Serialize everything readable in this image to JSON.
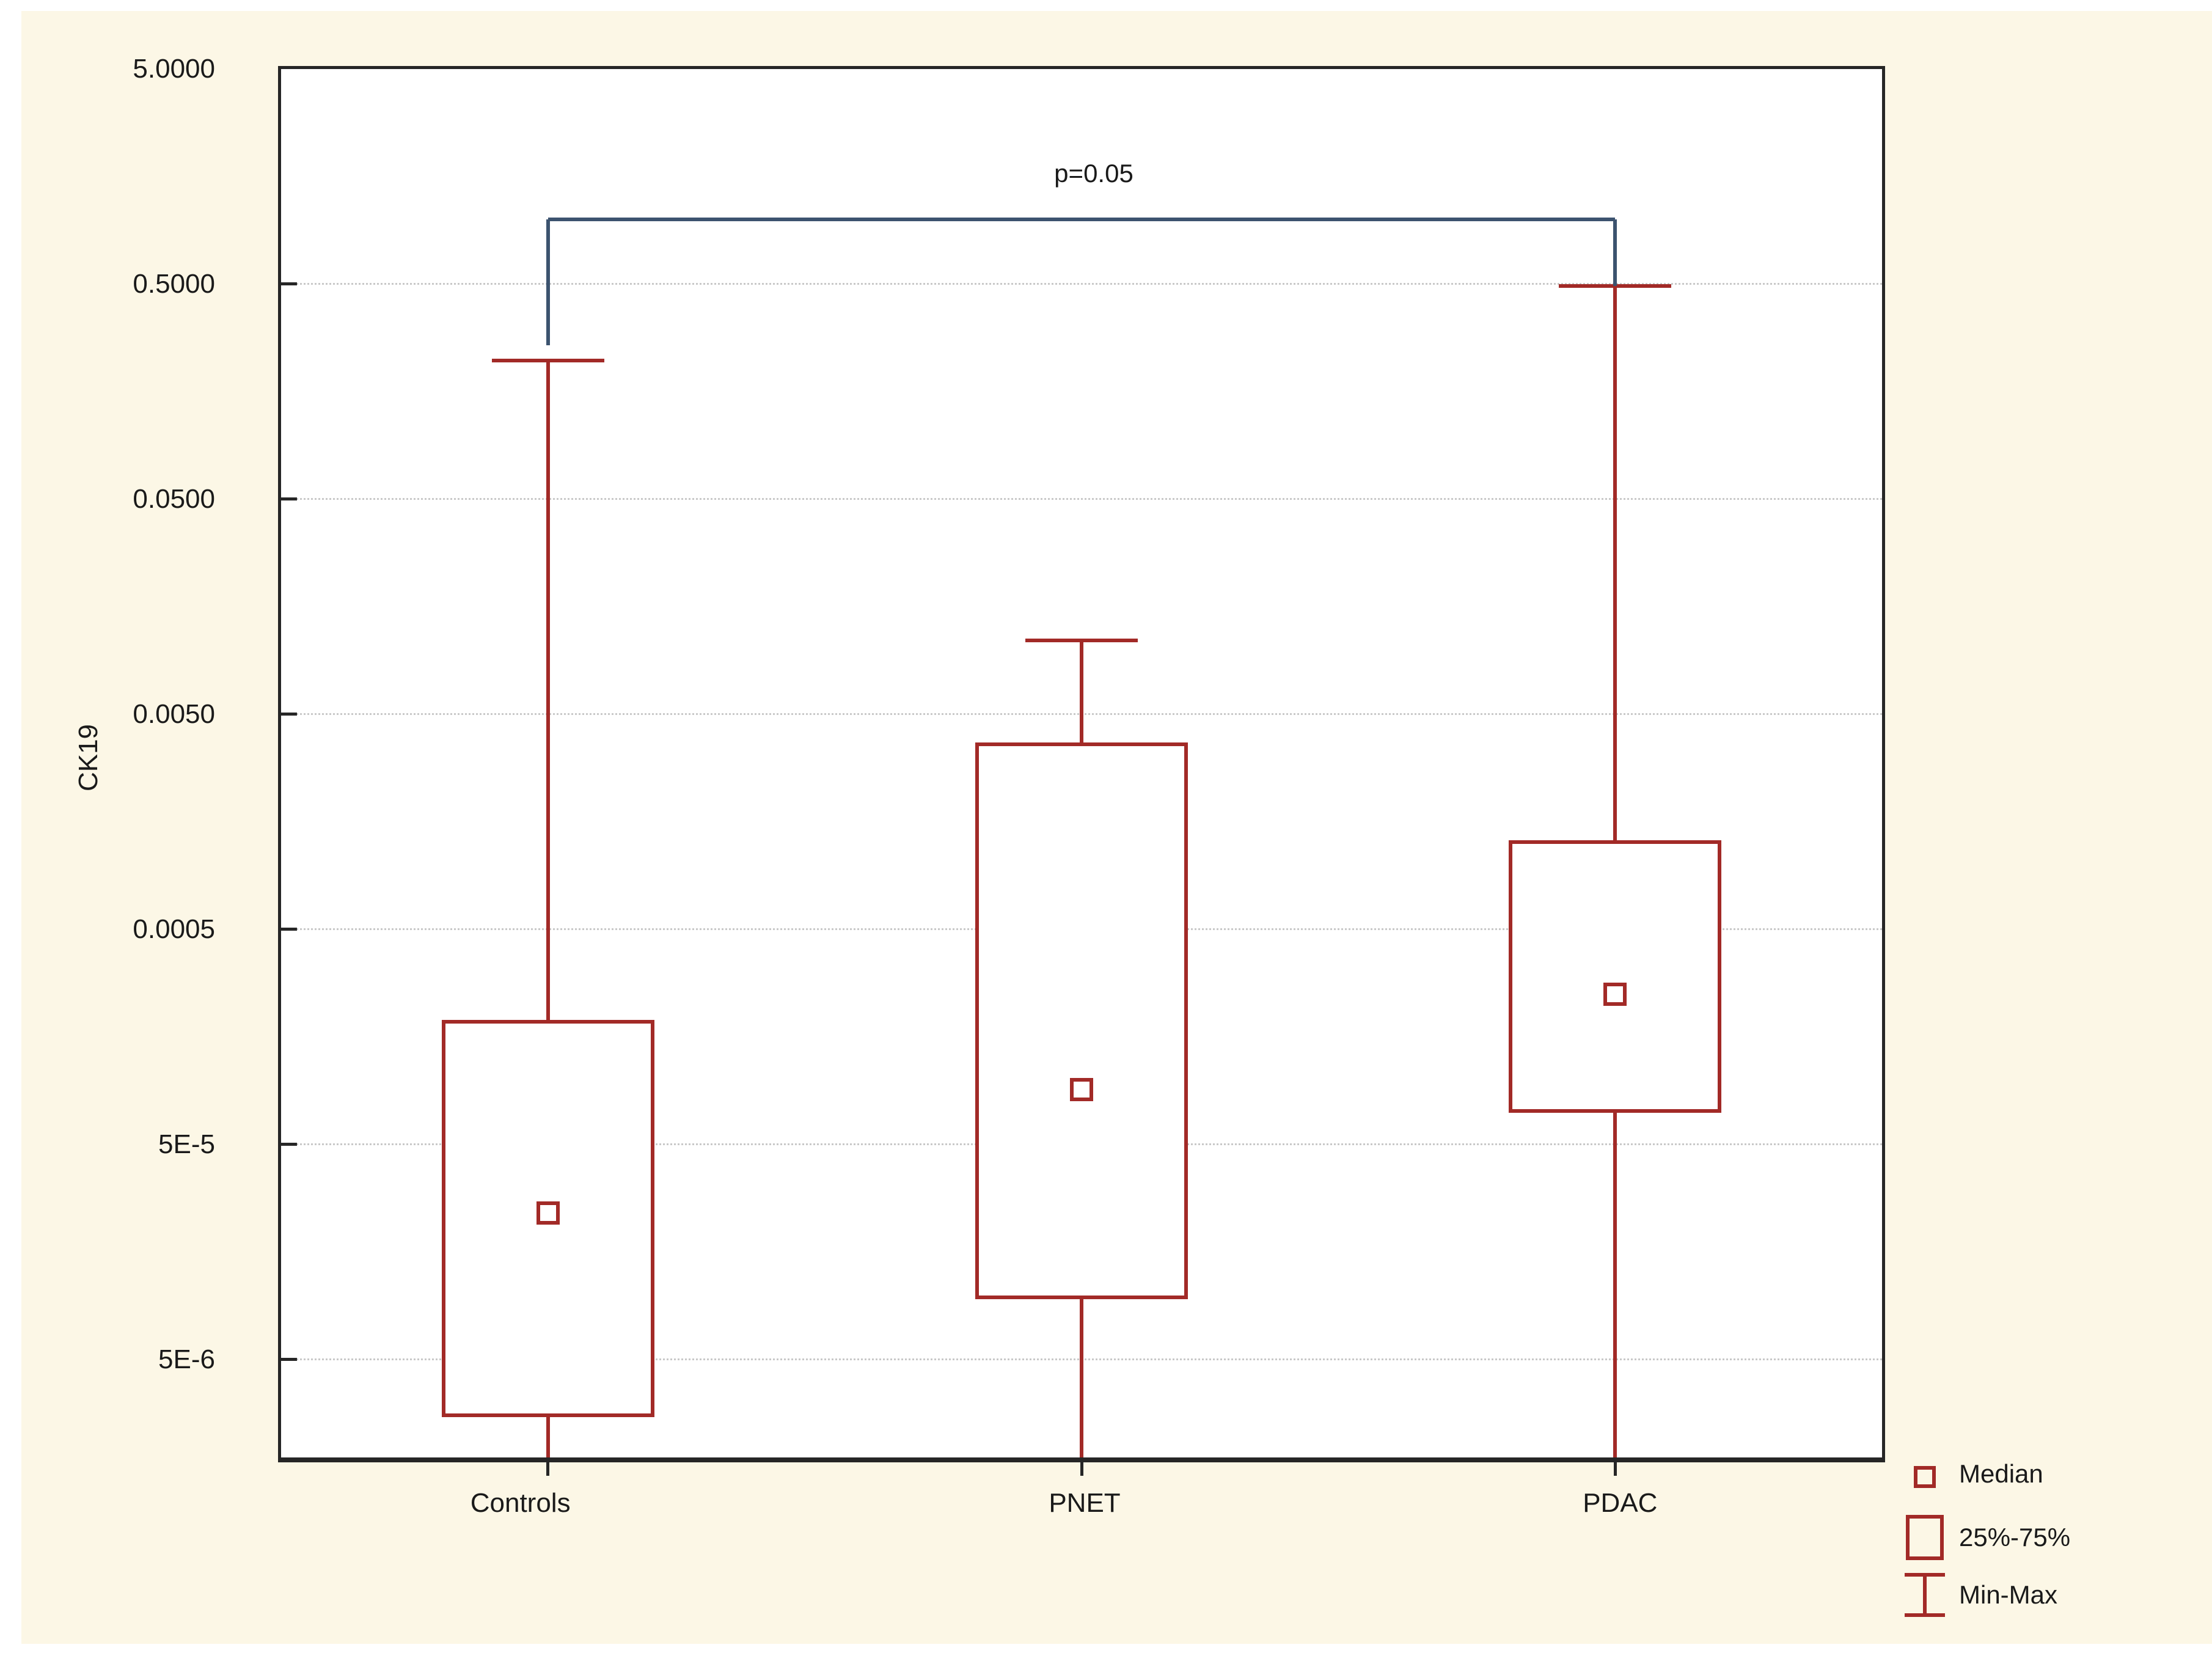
{
  "figure": {
    "page_background": "#ffffff",
    "panel_background": "#fcf7e6"
  },
  "chart_data": {
    "type": "box",
    "title": "",
    "xlabel": "",
    "ylabel": "CK19",
    "y_scale": "log",
    "ylim": [
      1.75e-06,
      5.0
    ],
    "grid": "horizontal-dotted",
    "categories": [
      "Controls",
      "PNET",
      "PDAC"
    ],
    "y_ticks": [
      {
        "label": "5.0000",
        "value": 5.0
      },
      {
        "label": "0.5000",
        "value": 0.5
      },
      {
        "label": "0.0500",
        "value": 0.05
      },
      {
        "label": "0.0050",
        "value": 0.005
      },
      {
        "label": "0.0005",
        "value": 0.0005
      },
      {
        "label": "5E-5",
        "value": 5e-05
      },
      {
        "label": "5E-6",
        "value": 5e-06
      }
    ],
    "series": [
      {
        "name": "Controls",
        "max": 0.22,
        "q3": 0.00019,
        "median": 2.4e-05,
        "q1": 2.7e-06,
        "min": 1e-06,
        "min_clipped_at_axis": true
      },
      {
        "name": "PNET",
        "max": 0.011,
        "q3": 0.0037,
        "median": 9e-05,
        "q1": 9.5e-06,
        "min": 1e-06,
        "min_clipped_at_axis": true
      },
      {
        "name": "PDAC",
        "max": 0.49,
        "q3": 0.0013,
        "median": 0.00025,
        "q1": 7e-05,
        "min": 1e-06,
        "min_clipped_at_axis": true
      }
    ],
    "annotation": {
      "text": "p=0.05",
      "between": [
        "Controls",
        "PDAC"
      ],
      "bar_value": 1.0,
      "left_tip_value": 0.26,
      "right_tip_value": 0.49
    },
    "legend": {
      "position": "bottom-right",
      "items": [
        {
          "symbol": "small-square",
          "label": "Median"
        },
        {
          "symbol": "box",
          "label": "25%-75%"
        },
        {
          "symbol": "error-bar",
          "label": "Min-Max"
        }
      ]
    },
    "colors": {
      "box": "#a22a27",
      "significance_bracket": "#3c536f",
      "gridline": "#c9c9c9",
      "axis": "#262626",
      "text": "#1a1a1a"
    }
  }
}
